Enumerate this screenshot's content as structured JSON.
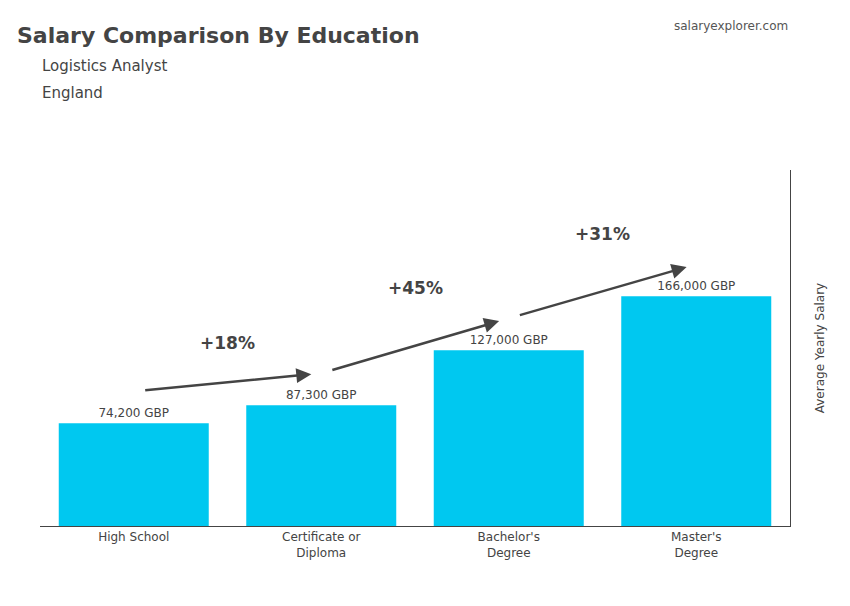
{
  "chart_data": {
    "type": "bar",
    "title": "Salary Comparison By Education",
    "subtitle": [
      "Logistics Analyst",
      "England"
    ],
    "ylabel": "Average Yearly Salary",
    "categories": [
      "High School",
      "Certificate or\nDiploma",
      "Bachelor's\nDegree",
      "Master's\nDegree"
    ],
    "values": [
      74200,
      87300,
      127000,
      166000
    ],
    "value_labels": [
      "74,200 GBP",
      "87,300 GBP",
      "127,000 GBP",
      "166,000 GBP"
    ],
    "data_labels": true,
    "color": "#00C8F0",
    "ylim": [
      0,
      257300
    ],
    "yticks": [],
    "tick_labels": "x",
    "grid": false,
    "annotations": [
      "salaryexplorer.com",
      {
        "text": "+18%",
        "from": "High School",
        "to": "Certificate or\nDiploma"
      },
      {
        "text": "+45%",
        "from": "Certificate or\nDiploma",
        "to": "Bachelor's\nDegree"
      },
      {
        "text": "+31%",
        "from": "Bachelor's\nDegree",
        "to": "Master's\nDegree"
      }
    ]
  }
}
